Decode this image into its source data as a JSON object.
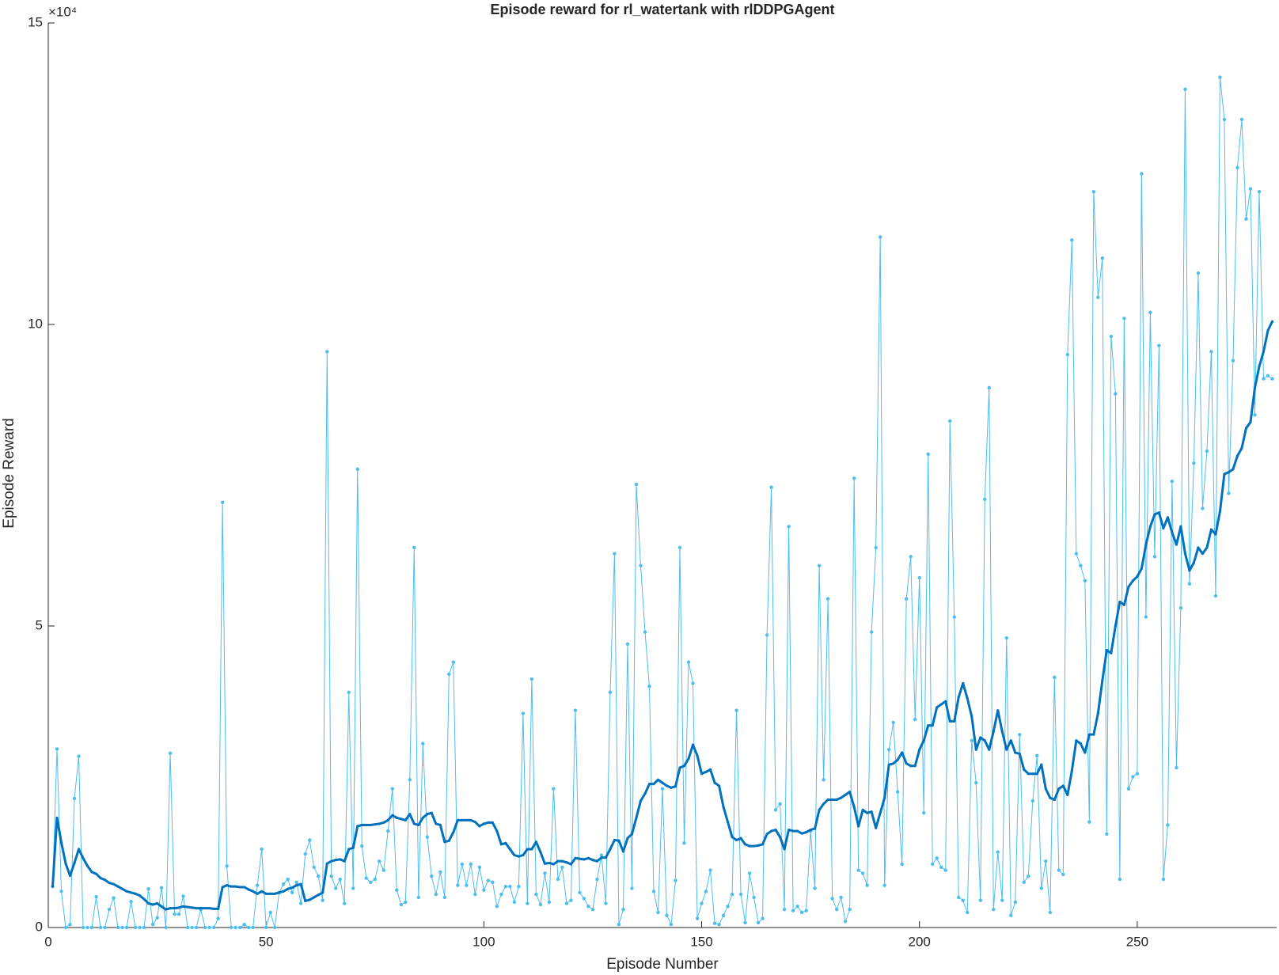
{
  "chart_data": {
    "type": "line",
    "title": "Episode reward for rl_watertank with rlDDPGAgent",
    "x_label": "Episode Number",
    "y_label": "Episode Reward",
    "y_exponent": "×10⁴",
    "x": [
      1,
      2,
      3,
      4,
      5,
      6,
      7,
      8,
      9,
      10,
      11,
      12,
      13,
      14,
      15,
      16,
      17,
      18,
      19,
      20,
      21,
      22,
      23,
      24,
      25,
      26,
      27,
      28,
      29,
      30,
      31,
      32,
      33,
      34,
      35,
      36,
      37,
      38,
      39,
      40,
      41,
      42,
      43,
      44,
      45,
      46,
      47,
      48,
      49,
      50,
      51,
      52,
      53,
      54,
      55,
      56,
      57,
      58,
      59,
      60,
      61,
      62,
      63,
      64,
      65,
      66,
      67,
      68,
      69,
      70,
      71,
      72,
      73,
      74,
      75,
      76,
      77,
      78,
      79,
      80,
      81,
      82,
      83,
      84,
      85,
      86,
      87,
      88,
      89,
      90,
      91,
      92,
      93,
      94,
      95,
      96,
      97,
      98,
      99,
      100,
      101,
      102,
      103,
      104,
      105,
      106,
      107,
      108,
      109,
      110,
      111,
      112,
      113,
      114,
      115,
      116,
      117,
      118,
      119,
      120,
      121,
      122,
      123,
      124,
      125,
      126,
      127,
      128,
      129,
      130,
      131,
      132,
      133,
      134,
      135,
      136,
      137,
      138,
      139,
      140,
      141,
      142,
      143,
      144,
      145,
      146,
      147,
      148,
      149,
      150,
      151,
      152,
      153,
      154,
      155,
      156,
      157,
      158,
      159,
      160,
      161,
      162,
      163,
      164,
      165,
      166,
      167,
      168,
      169,
      170,
      171,
      172,
      173,
      174,
      175,
      176,
      177,
      178,
      179,
      180,
      181,
      182,
      183,
      184,
      185,
      186,
      187,
      188,
      189,
      190,
      191,
      192,
      193,
      194,
      195,
      196,
      197,
      198,
      199,
      200,
      201,
      202,
      203,
      204,
      205,
      206,
      207,
      208,
      209,
      210,
      211,
      212,
      213,
      214,
      215,
      216,
      217,
      218,
      219,
      220,
      221,
      222,
      223,
      224,
      225,
      226,
      227,
      228,
      229,
      230,
      231,
      232,
      233,
      234,
      235,
      236,
      237,
      238,
      239,
      240,
      241,
      242,
      243,
      244,
      245,
      246,
      247,
      248,
      249,
      250,
      251,
      252,
      253,
      254,
      255,
      256,
      257,
      258,
      259,
      260,
      261,
      262,
      263,
      264,
      265,
      266,
      267,
      268,
      269,
      270,
      271,
      272,
      273,
      274,
      275,
      276,
      277,
      278,
      279,
      280,
      281
    ],
    "series": [
      {
        "color": "#4DBEEE",
        "line_width": 1,
        "marker_radius": 2.2,
        "values": [
          0.68,
          2.96,
          0.6,
          0,
          0.05,
          2.14,
          2.84,
          0,
          0,
          0,
          0.51,
          0,
          0,
          0.3,
          0.49,
          0,
          0,
          0,
          0.43,
          0,
          0,
          0,
          0.64,
          0.05,
          0.16,
          0.66,
          0,
          2.89,
          0.22,
          0.22,
          0.52,
          0,
          0,
          0,
          0.3,
          0,
          0,
          0,
          0.15,
          7.05,
          1.02,
          0,
          0,
          0,
          0.05,
          0,
          0,
          0.7,
          1.3,
          0,
          0.25,
          0,
          0.58,
          0.72,
          0.8,
          0.58,
          0.75,
          0.4,
          1.22,
          1.45,
          1.0,
          0.85,
          0.45,
          9.55,
          0.85,
          0.65,
          0.8,
          0.4,
          3.9,
          0.65,
          7.6,
          1.35,
          0.82,
          0.75,
          0.8,
          1.1,
          0.95,
          1.6,
          2.3,
          0.62,
          0.38,
          0.42,
          2.45,
          6.3,
          0.5,
          3.05,
          1.5,
          0.85,
          0.55,
          0.92,
          0.5,
          4.2,
          4.4,
          0.7,
          1.05,
          0.7,
          1.05,
          0.55,
          1.0,
          0.62,
          0.78,
          0.75,
          0.35,
          0.55,
          0.68,
          0.68,
          0.42,
          0.68,
          3.55,
          0.4,
          4.12,
          0.55,
          0.38,
          0.9,
          0.42,
          2.3,
          0.8,
          1.0,
          0.4,
          0.45,
          3.6,
          0.58,
          0.48,
          0.35,
          0.3,
          0.8,
          1.2,
          0.4,
          3.9,
          6.2,
          0.05,
          0.3,
          4.7,
          0.65,
          7.35,
          6.0,
          4.9,
          4.0,
          0.6,
          0.25,
          2.3,
          0.2,
          0.05,
          0.78,
          6.3,
          1.4,
          4.4,
          4.05,
          0.15,
          0.4,
          0.6,
          0.95,
          0.07,
          0.05,
          0.2,
          0.35,
          0.55,
          3.6,
          0.55,
          0.08,
          0.9,
          0.5,
          0.08,
          0.15,
          4.85,
          7.3,
          1.95,
          2.05,
          0.3,
          6.65,
          0.28,
          0.35,
          0.25,
          0.28,
          1.6,
          0.65,
          6.0,
          2.45,
          5.45,
          0.48,
          0.3,
          0.5,
          0.1,
          0.3,
          7.45,
          0.95,
          0.9,
          0.7,
          4.9,
          6.3,
          11.45,
          0.7,
          2.95,
          3.4,
          2.25,
          1.05,
          5.45,
          6.15,
          3.45,
          5.8,
          1.9,
          7.85,
          1.05,
          1.15,
          1.0,
          0.95,
          8.4,
          5.15,
          0.5,
          0.45,
          0.25,
          3.1,
          2.4,
          0.45,
          7.1,
          8.95,
          0.3,
          1.25,
          0.45,
          4.8,
          0.2,
          0.42,
          3.2,
          0.75,
          0.85,
          2.1,
          2.85,
          0.65,
          1.1,
          0.25,
          4.15,
          0.95,
          0.88,
          9.5,
          11.4,
          6.2,
          6.0,
          5.75,
          1.75,
          12.2,
          10.45,
          11.1,
          1.55,
          9.8,
          8.85,
          0.8,
          10.1,
          2.3,
          2.5,
          2.55,
          12.5,
          5.15,
          10.2,
          6.15,
          9.65,
          0.8,
          1.7,
          7.4,
          2.65,
          5.3,
          13.9,
          5.7,
          7.7,
          10.85,
          6.95,
          7.9,
          9.55,
          5.5,
          14.1,
          13.4,
          7.2,
          9.4,
          12.6,
          13.4,
          11.75,
          12.25,
          8.5,
          12.2,
          9.1,
          9.15,
          9.1
        ]
      },
      {
        "color": "#0072BD",
        "line_width": 3,
        "marker_radius": 1.6,
        "values": [
          0.68,
          1.82,
          1.41,
          1.06,
          0.86,
          1.07,
          1.3,
          1.15,
          1.02,
          0.92,
          0.89,
          0.82,
          0.79,
          0.74,
          0.72,
          0.68,
          0.64,
          0.6,
          0.58,
          0.56,
          0.53,
          0.47,
          0.4,
          0.38,
          0.4,
          0.35,
          0.3,
          0.32,
          0.32,
          0.33,
          0.35,
          0.34,
          0.33,
          0.32,
          0.32,
          0.32,
          0.32,
          0.31,
          0.31,
          0.67,
          0.7,
          0.68,
          0.68,
          0.67,
          0.67,
          0.63,
          0.6,
          0.56,
          0.6,
          0.56,
          0.56,
          0.56,
          0.58,
          0.6,
          0.64,
          0.66,
          0.7,
          0.72,
          0.44,
          0.46,
          0.5,
          0.54,
          0.58,
          1.06,
          1.1,
          1.12,
          1.13,
          1.1,
          1.3,
          1.32,
          1.68,
          1.7,
          1.7,
          1.7,
          1.71,
          1.72,
          1.74,
          1.78,
          1.86,
          1.82,
          1.8,
          1.78,
          1.88,
          1.72,
          1.7,
          1.82,
          1.88,
          1.9,
          1.72,
          1.7,
          1.42,
          1.44,
          1.58,
          1.78,
          1.78,
          1.78,
          1.78,
          1.75,
          1.68,
          1.72,
          1.74,
          1.74,
          1.6,
          1.38,
          1.4,
          1.3,
          1.2,
          1.18,
          1.2,
          1.3,
          1.3,
          1.42,
          1.25,
          1.06,
          1.07,
          1.05,
          1.1,
          1.1,
          1.08,
          1.05,
          1.15,
          1.14,
          1.13,
          1.15,
          1.12,
          1.1,
          1.16,
          1.16,
          1.3,
          1.45,
          1.44,
          1.26,
          1.48,
          1.55,
          1.82,
          2.1,
          2.22,
          2.38,
          2.38,
          2.45,
          2.4,
          2.35,
          2.32,
          2.34,
          2.65,
          2.68,
          2.8,
          3.03,
          2.85,
          2.55,
          2.58,
          2.62,
          2.4,
          2.35,
          2.0,
          1.75,
          1.5,
          1.45,
          1.48,
          1.38,
          1.35,
          1.35,
          1.36,
          1.38,
          1.55,
          1.6,
          1.62,
          1.5,
          1.3,
          1.62,
          1.6,
          1.6,
          1.56,
          1.58,
          1.62,
          1.64,
          1.95,
          2.05,
          2.12,
          2.12,
          2.12,
          2.15,
          2.2,
          2.25,
          2.0,
          1.68,
          1.95,
          1.9,
          1.92,
          1.65,
          1.9,
          2.15,
          2.7,
          2.72,
          2.78,
          2.9,
          2.72,
          2.68,
          2.68,
          2.95,
          3.1,
          3.35,
          3.35,
          3.65,
          3.7,
          3.75,
          3.42,
          3.42,
          3.82,
          4.05,
          3.8,
          3.5,
          2.95,
          3.15,
          3.1,
          2.95,
          3.25,
          3.6,
          3.25,
          2.95,
          3.1,
          2.9,
          2.88,
          2.62,
          2.55,
          2.55,
          2.55,
          2.7,
          2.3,
          2.15,
          2.12,
          2.3,
          2.35,
          2.2,
          2.6,
          3.1,
          3.05,
          2.9,
          3.2,
          3.2,
          3.55,
          4.1,
          4.6,
          4.55,
          5.0,
          5.4,
          5.35,
          5.65,
          5.75,
          5.82,
          5.95,
          6.35,
          6.65,
          6.85,
          6.88,
          6.62,
          6.8,
          6.55,
          6.35,
          6.65,
          6.2,
          5.92,
          6.05,
          6.3,
          6.2,
          6.3,
          6.6,
          6.52,
          6.9,
          7.52,
          7.55,
          7.6,
          7.82,
          7.95,
          8.28,
          8.38,
          8.95,
          9.3,
          9.55,
          9.9,
          10.05
        ]
      }
    ],
    "xlim": [
      0,
      282
    ],
    "xticks": [
      0,
      50,
      100,
      150,
      200,
      250
    ],
    "ylim": [
      0,
      15
    ],
    "yticks": [
      0,
      5,
      10,
      15
    ]
  }
}
